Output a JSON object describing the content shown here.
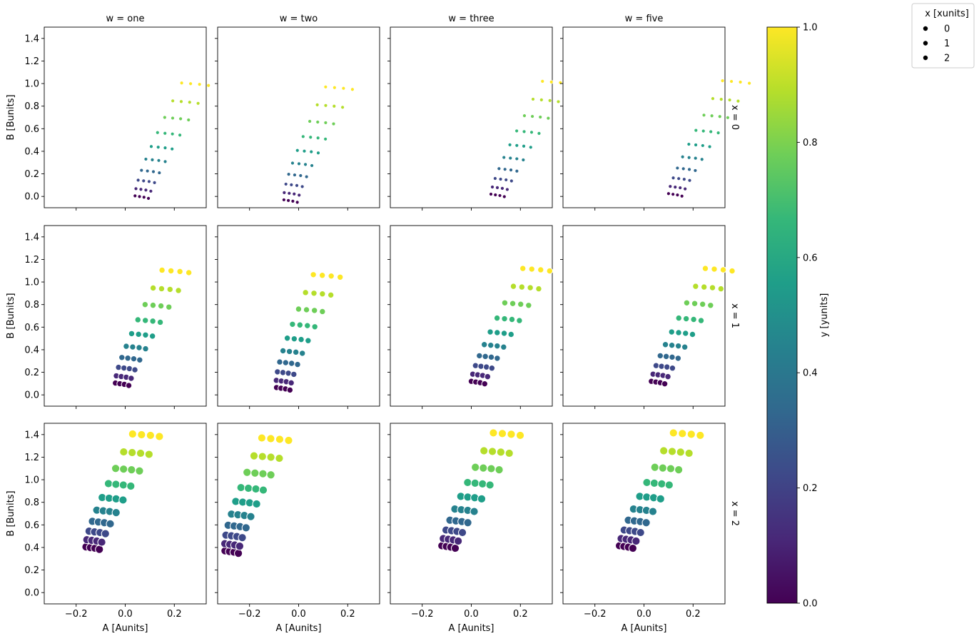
{
  "chart_data": {
    "type": "scatter",
    "facets": {
      "col_var": "w",
      "row_var": "x",
      "col_titles": [
        "w = one",
        "w = two",
        "w = three",
        "w = five"
      ],
      "row_titles": [
        "x = 0",
        "x = 1",
        "x = 2"
      ]
    },
    "xlabel": "A [Aunits]",
    "ylabel": "B [Bunits]",
    "xlim": [
      -0.33,
      0.33
    ],
    "ylim": [
      -0.1,
      1.5
    ],
    "xticks": [
      -0.2,
      0.0,
      0.2
    ],
    "xtick_labels": [
      "−0.2",
      "0.0",
      "0.2"
    ],
    "yticks": [
      0.0,
      0.2,
      0.4,
      0.6,
      0.8,
      1.0,
      1.2,
      1.4
    ],
    "ytick_labels": [
      "0.0",
      "0.2",
      "0.4",
      "0.6",
      "0.8",
      "1.0",
      "1.2",
      "1.4"
    ],
    "grid": false,
    "colorbar": {
      "label": "y [yunits]",
      "range": [
        0,
        1
      ],
      "ticks": [
        0.0,
        0.2,
        0.4,
        0.6,
        0.8,
        1.0
      ],
      "tick_labels": [
        "0.0",
        "0.2",
        "0.4",
        "0.6",
        "0.8",
        "1.0"
      ],
      "colormap": "viridis",
      "stops": [
        "#440154",
        "#482878",
        "#3e4989",
        "#31688e",
        "#26828e",
        "#1f9e89",
        "#35b779",
        "#6ece58",
        "#b5de2b",
        "#fde725"
      ]
    },
    "size_legend": {
      "title": "x [xunits]",
      "entries": [
        "0",
        "1",
        "2"
      ],
      "placement": "top-right"
    },
    "marker_edge_color": "#ffffff",
    "y_levels": [
      0.0,
      0.111,
      0.222,
      0.333,
      0.444,
      0.556,
      0.667,
      0.778,
      0.889,
      1.0
    ],
    "marker_sizes_by_row": [
      2.4,
      4.2,
      5.6
    ],
    "panels": [
      [
        {
          "x0": 0.04,
          "b0": 0.005,
          "shift": 0.0
        },
        {
          "x0": -0.06,
          "b0": -0.03,
          "shift": -0.02
        },
        {
          "x0": 0.08,
          "b0": 0.02,
          "shift": 0.02
        },
        {
          "x0": 0.1,
          "b0": 0.025,
          "shift": 0.03
        }
      ],
      [
        {
          "x0": -0.04,
          "b0": 0.105,
          "shift": 0.0
        },
        {
          "x0": -0.09,
          "b0": 0.065,
          "shift": -0.04
        },
        {
          "x0": 0.0,
          "b0": 0.12,
          "shift": 0.02
        },
        {
          "x0": 0.03,
          "b0": 0.12,
          "shift": 0.03
        }
      ],
      [
        {
          "x0": -0.16,
          "b0": 0.405,
          "shift": 0.0
        },
        {
          "x0": -0.3,
          "b0": 0.37,
          "shift": -0.04
        },
        {
          "x0": -0.12,
          "b0": 0.415,
          "shift": 0.02
        },
        {
          "x0": -0.1,
          "b0": 0.415,
          "shift": 0.03
        }
      ]
    ]
  }
}
